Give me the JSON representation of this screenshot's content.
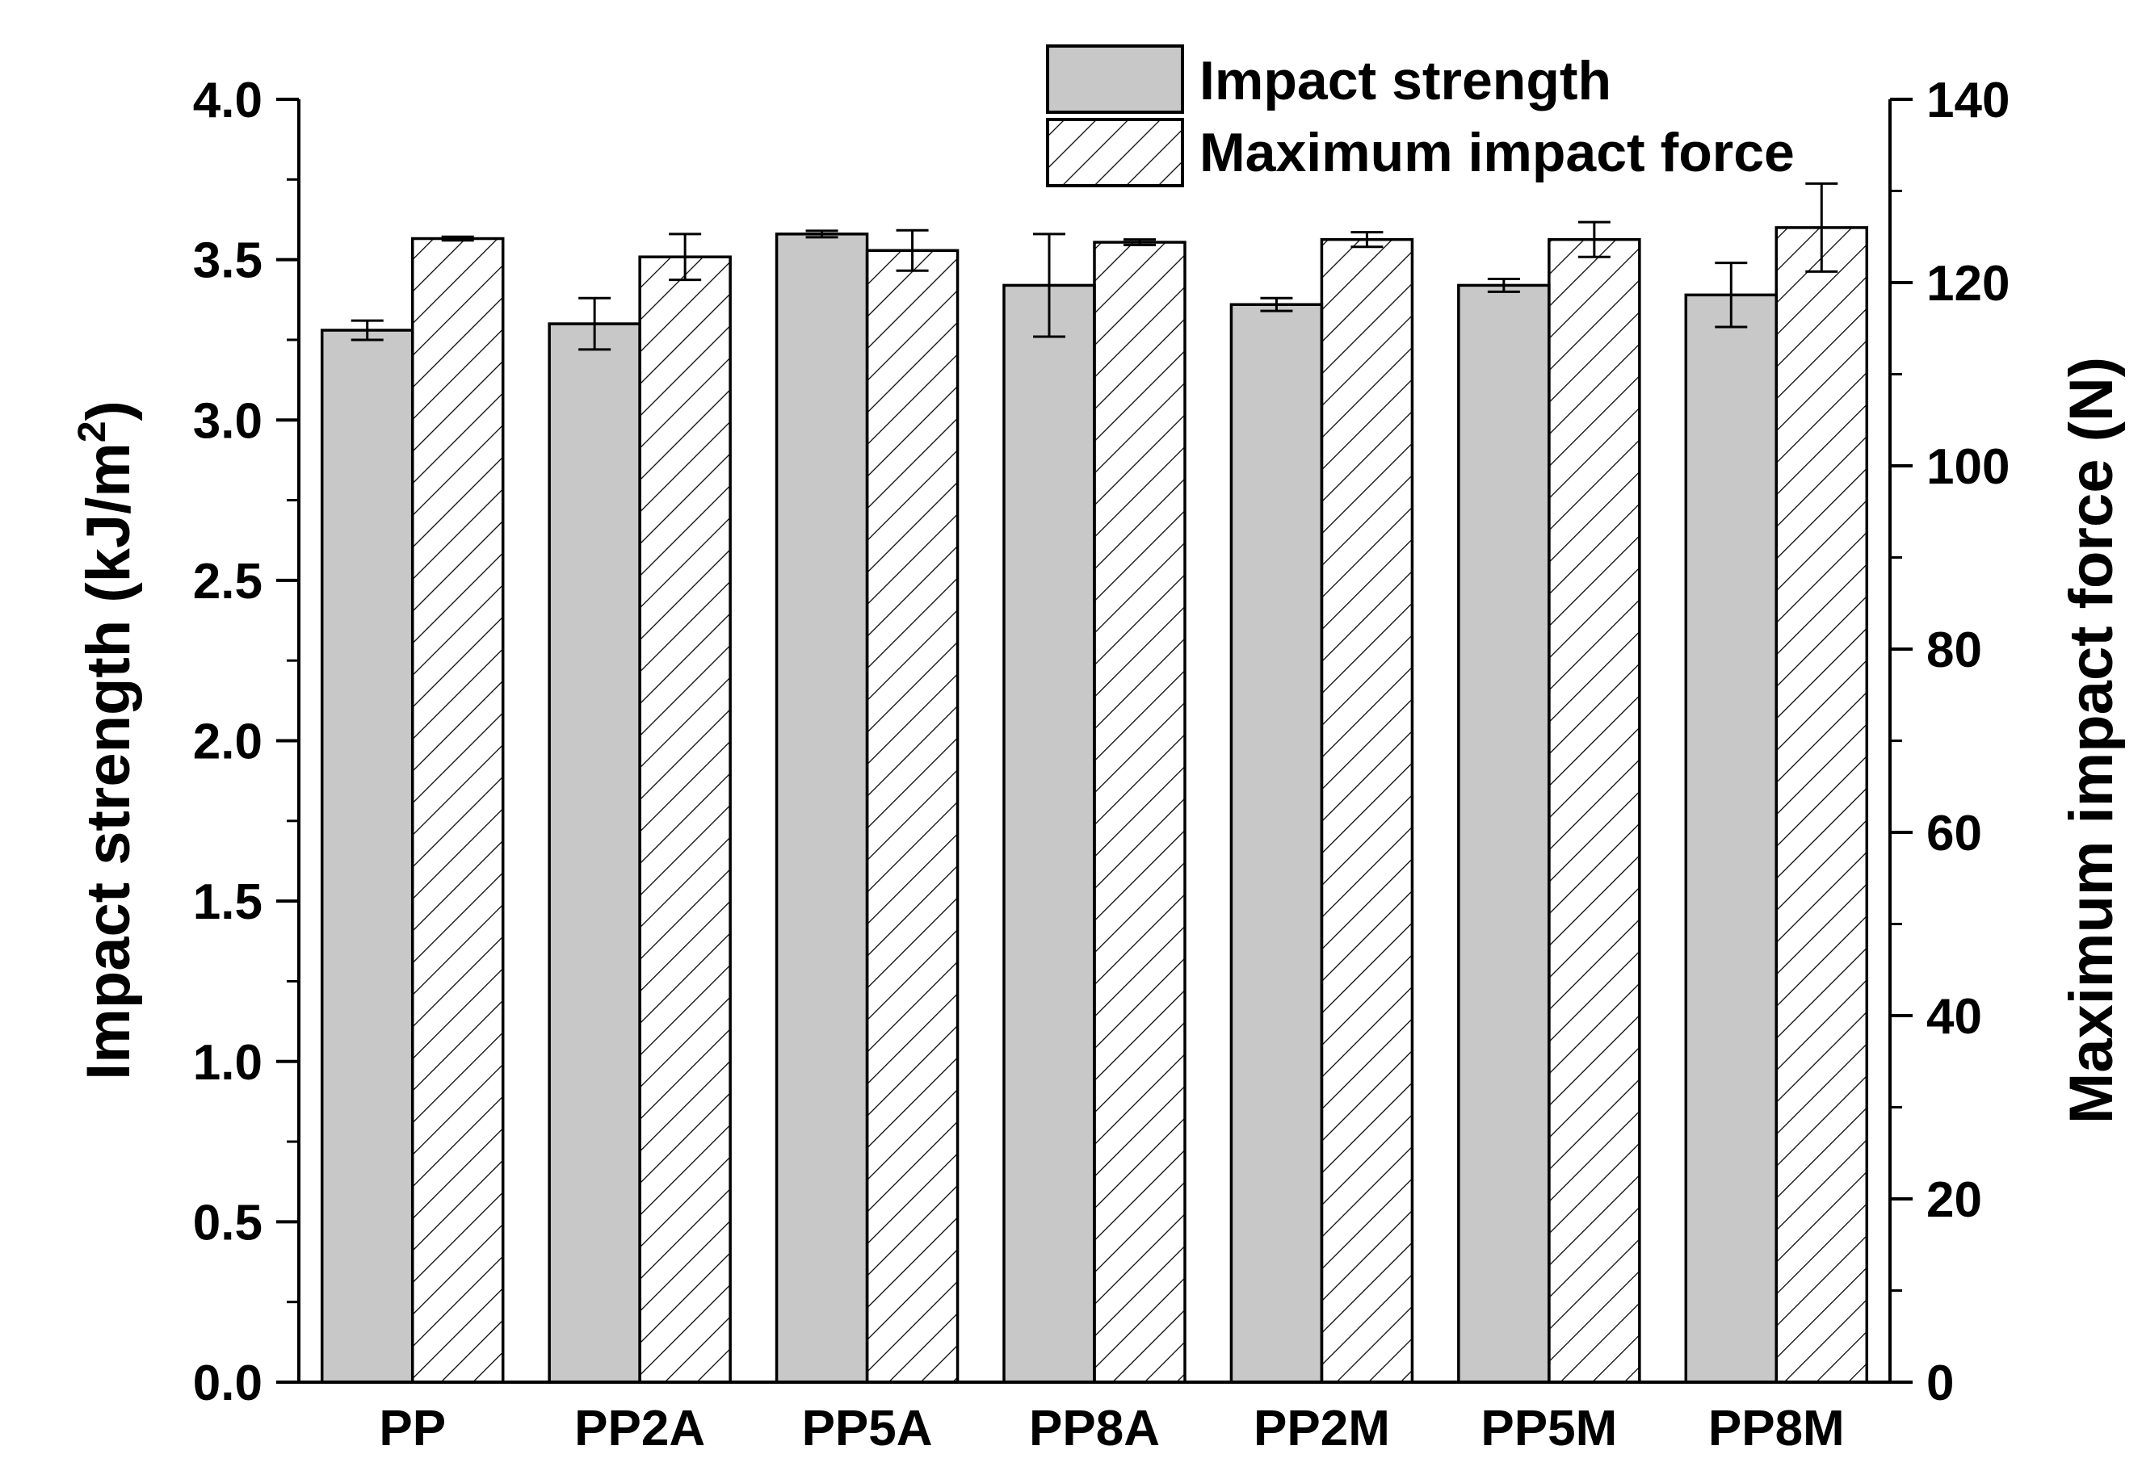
{
  "chart_data": {
    "type": "bar",
    "categories": [
      "PP",
      "PP2A",
      "PP5A",
      "PP8A",
      "PP2M",
      "PP5M",
      "PP8M"
    ],
    "series": [
      {
        "name": "Impact strength",
        "axis": "left",
        "fill": "#c8c8c8",
        "pattern": "solid",
        "values": [
          3.28,
          3.3,
          3.58,
          3.42,
          3.36,
          3.42,
          3.39
        ],
        "errors": [
          0.03,
          0.08,
          0.01,
          0.16,
          0.02,
          0.02,
          0.1
        ]
      },
      {
        "name": "Maximum impact force",
        "axis": "right",
        "fill": "#ffffff",
        "pattern": "hatch",
        "values": [
          124.8,
          122.8,
          123.5,
          124.4,
          124.7,
          124.7,
          126.0
        ],
        "errors": [
          0.2,
          2.5,
          2.2,
          0.3,
          0.8,
          1.9,
          4.8
        ]
      }
    ],
    "left_axis": {
      "label_main": "Impact strength (kJ/m",
      "label_sup": "2",
      "label_end": ")",
      "ylim": [
        0,
        4.0
      ],
      "ticks": [
        "0.0",
        "0.5",
        "1.0",
        "1.5",
        "2.0",
        "2.5",
        "3.0",
        "3.5",
        "4.0"
      ]
    },
    "right_axis": {
      "label": "Maximum impact force (N)",
      "ylim": [
        0,
        140
      ],
      "ticks": [
        "0",
        "20",
        "40",
        "60",
        "80",
        "100",
        "120",
        "140"
      ]
    },
    "legend_position": "top-right",
    "grid": false
  }
}
